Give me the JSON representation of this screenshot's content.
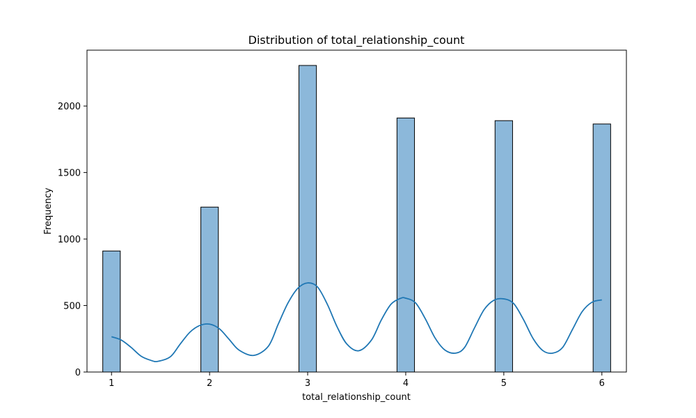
{
  "chart_data": {
    "type": "bar",
    "title": "Distribution of total_relationship_count",
    "xlabel": "total_relationship_count",
    "ylabel": "Frequency",
    "xlim": [
      0.75,
      6.25
    ],
    "ylim": [
      0,
      2420
    ],
    "xticks": [
      1,
      2,
      3,
      4,
      5,
      6
    ],
    "yticks": [
      0,
      500,
      1000,
      1500,
      2000
    ],
    "bin_width": 0.1786,
    "bars": [
      {
        "x": 1,
        "value": 910
      },
      {
        "x": 2,
        "value": 1240
      },
      {
        "x": 3,
        "value": 2305
      },
      {
        "x": 4,
        "value": 1910
      },
      {
        "x": 5,
        "value": 1890
      },
      {
        "x": 6,
        "value": 1865
      }
    ],
    "kde": {
      "x": [
        1.0,
        1.1,
        1.2,
        1.3,
        1.4,
        1.47,
        1.6,
        1.7,
        1.8,
        1.9,
        2.0,
        2.1,
        2.2,
        2.3,
        2.45,
        2.6,
        2.7,
        2.8,
        2.9,
        3.0,
        3.1,
        3.2,
        3.3,
        3.4,
        3.52,
        3.65,
        3.75,
        3.85,
        3.95,
        4.0,
        4.1,
        4.2,
        4.3,
        4.4,
        4.51,
        4.6,
        4.7,
        4.8,
        4.9,
        5.0,
        5.1,
        5.2,
        5.3,
        5.4,
        5.5,
        5.6,
        5.7,
        5.8,
        5.9,
        6.0
      ],
      "y": [
        265,
        240,
        185,
        120,
        88,
        80,
        115,
        210,
        300,
        350,
        360,
        325,
        245,
        165,
        125,
        195,
        360,
        520,
        630,
        670,
        640,
        510,
        340,
        210,
        160,
        240,
        390,
        510,
        555,
        555,
        520,
        400,
        255,
        165,
        142,
        185,
        330,
        470,
        540,
        550,
        515,
        395,
        250,
        160,
        142,
        185,
        320,
        455,
        525,
        542
      ]
    },
    "bar_fill": "#8cb8da",
    "bar_edge": "#000000",
    "kde_color": "#1f77b4",
    "grid": false,
    "legend": "none"
  }
}
